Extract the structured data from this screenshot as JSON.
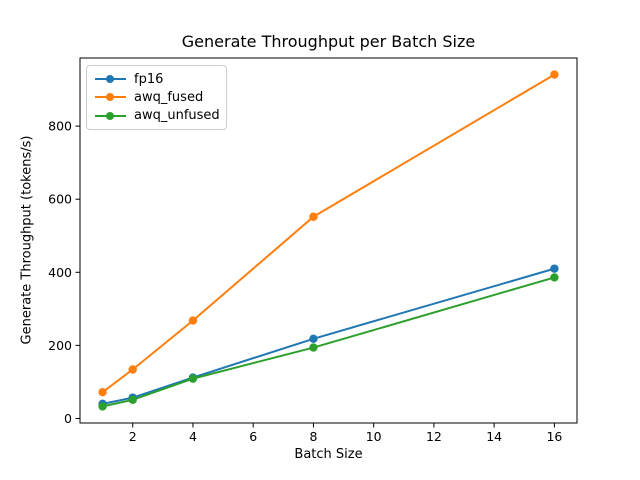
{
  "chart_data": {
    "type": "line",
    "title": "Generate Throughput per Batch Size",
    "xlabel": "Batch Size",
    "ylabel": "Generate Throughput (tokens/s)",
    "x": [
      1,
      2,
      4,
      8,
      16
    ],
    "series": [
      {
        "name": "fp16",
        "color": "#1f77b4",
        "values": [
          40,
          57,
          112,
          218,
          410
        ]
      },
      {
        "name": "awq_fused",
        "color": "#ff7f0e",
        "values": [
          72,
          134,
          268,
          552,
          941
        ]
      },
      {
        "name": "awq_unfused",
        "color": "#2ca02c",
        "values": [
          33,
          51,
          109,
          194,
          386
        ]
      }
    ],
    "xticks": [
      2,
      4,
      6,
      8,
      10,
      12,
      14,
      16
    ],
    "yticks": [
      0,
      200,
      400,
      600,
      800
    ],
    "xlim": [
      0.25,
      16.75
    ],
    "ylim": [
      -12.4,
      986.4
    ],
    "grid": false,
    "legend_position": "upper left",
    "marker": "o",
    "text_color": "#000000",
    "spine_color": "#000000",
    "legend_border_color": "#cccccc"
  }
}
